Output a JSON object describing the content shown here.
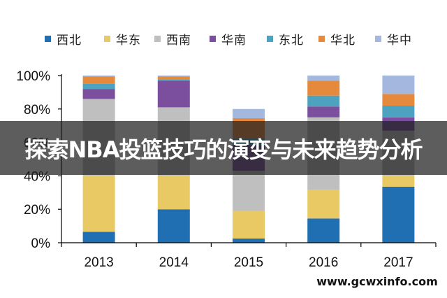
{
  "chart_data": {
    "type": "bar",
    "stacked": true,
    "categories": [
      "2013",
      "2014",
      "2015",
      "2016",
      "2017"
    ],
    "series": [
      {
        "name": "西北",
        "color": "#1f6fb2",
        "values": [
          6.5,
          20,
          2.5,
          14.5,
          33.5
        ]
      },
      {
        "name": "华东",
        "color": "#e8c964",
        "values": [
          33.5,
          20,
          16.5,
          17,
          6.5
        ]
      },
      {
        "name": "西南",
        "color": "#bfbfbf",
        "values": [
          46,
          41,
          24,
          43.5,
          27
        ]
      },
      {
        "name": "华南",
        "color": "#7b4f9d",
        "values": [
          6,
          16,
          15.5,
          6.5,
          8
        ]
      },
      {
        "name": "东北",
        "color": "#4da3bf",
        "values": [
          3,
          0.5,
          4,
          6.5,
          7
        ]
      },
      {
        "name": "华北",
        "color": "#e58a3c",
        "values": [
          4.5,
          2,
          12,
          9,
          7
        ]
      },
      {
        "name": "华中",
        "color": "#a4b8df",
        "values": [
          0.5,
          0.5,
          5.5,
          3,
          11
        ]
      }
    ],
    "ylim": [
      0,
      100
    ],
    "yticks": [
      "0%",
      "20%",
      "40%",
      "60%",
      "80%",
      "100%"
    ],
    "ytick_values": [
      0,
      20,
      40,
      60,
      80,
      100
    ],
    "grid": false,
    "legend_position": "top"
  },
  "banner": {
    "title": "探索NBA投篮技巧的演变与未来趋势分析"
  },
  "watermark": {
    "text": "www.gcwxinfo.com"
  }
}
